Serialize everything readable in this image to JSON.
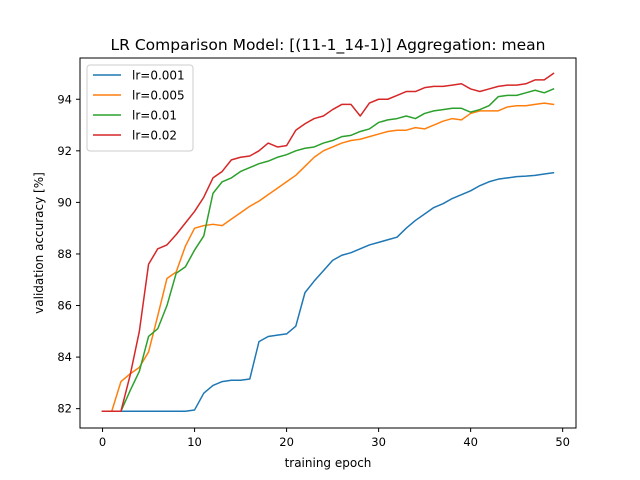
{
  "chart_data": {
    "type": "line",
    "title": "LR Comparison  Model: [(11-1_14-1)]  Aggregation: mean",
    "xlabel": "training epoch",
    "ylabel": "validation accuracy [%]",
    "xlim": [
      -2.45,
      51.45
    ],
    "ylim": [
      81.25,
      95.6
    ],
    "xticks": [
      0,
      10,
      20,
      30,
      40,
      50
    ],
    "yticks": [
      82,
      84,
      86,
      88,
      90,
      92,
      94
    ],
    "grid": false,
    "legend_position": "top-left",
    "series": [
      {
        "name": "lr=0.001",
        "color": "#1f77b4",
        "x": [
          0,
          1,
          2,
          3,
          4,
          5,
          6,
          7,
          8,
          9,
          10,
          11,
          12,
          13,
          14,
          15,
          16,
          17,
          18,
          19,
          20,
          21,
          22,
          23,
          24,
          25,
          26,
          27,
          28,
          29,
          30,
          31,
          32,
          33,
          34,
          35,
          36,
          37,
          38,
          39,
          40,
          41,
          42,
          43,
          44,
          45,
          46,
          47,
          48,
          49
        ],
        "values": [
          81.9,
          81.9,
          81.9,
          81.9,
          81.9,
          81.9,
          81.9,
          81.9,
          81.9,
          81.9,
          81.95,
          82.6,
          82.9,
          83.05,
          83.1,
          83.1,
          83.15,
          84.6,
          84.8,
          84.85,
          84.9,
          85.2,
          86.5,
          86.95,
          87.35,
          87.75,
          87.95,
          88.05,
          88.2,
          88.35,
          88.45,
          88.55,
          88.65,
          89.0,
          89.3,
          89.55,
          89.8,
          89.95,
          90.15,
          90.3,
          90.45,
          90.65,
          90.8,
          90.9,
          90.95,
          91.0,
          91.02,
          91.05,
          91.1,
          91.15
        ]
      },
      {
        "name": "lr=0.005",
        "color": "#ff7f0e",
        "x": [
          0,
          1,
          2,
          3,
          4,
          5,
          6,
          7,
          8,
          9,
          10,
          11,
          12,
          13,
          14,
          15,
          16,
          17,
          18,
          19,
          20,
          21,
          22,
          23,
          24,
          25,
          26,
          27,
          28,
          29,
          30,
          31,
          32,
          33,
          34,
          35,
          36,
          37,
          38,
          39,
          40,
          41,
          42,
          43,
          44,
          45,
          46,
          47,
          48,
          49
        ],
        "values": [
          81.9,
          81.9,
          83.05,
          83.35,
          83.6,
          84.2,
          85.6,
          87.05,
          87.3,
          88.3,
          89.0,
          89.1,
          89.15,
          89.1,
          89.35,
          89.6,
          89.85,
          90.05,
          90.3,
          90.55,
          90.8,
          91.05,
          91.4,
          91.75,
          92.0,
          92.15,
          92.3,
          92.4,
          92.45,
          92.55,
          92.65,
          92.75,
          92.8,
          92.8,
          92.9,
          92.85,
          93.0,
          93.15,
          93.25,
          93.2,
          93.45,
          93.55,
          93.55,
          93.55,
          93.7,
          93.75,
          93.75,
          93.8,
          93.85,
          93.8
        ]
      },
      {
        "name": "lr=0.01",
        "color": "#2ca02c",
        "x": [
          0,
          1,
          2,
          3,
          4,
          5,
          6,
          7,
          8,
          9,
          10,
          11,
          12,
          13,
          14,
          15,
          16,
          17,
          18,
          19,
          20,
          21,
          22,
          23,
          24,
          25,
          26,
          27,
          28,
          29,
          30,
          31,
          32,
          33,
          34,
          35,
          36,
          37,
          38,
          39,
          40,
          41,
          42,
          43,
          44,
          45,
          46,
          47,
          48,
          49
        ],
        "values": [
          81.9,
          81.9,
          81.9,
          82.7,
          83.45,
          84.8,
          85.1,
          86.0,
          87.25,
          87.5,
          88.15,
          88.7,
          90.35,
          90.8,
          90.95,
          91.2,
          91.35,
          91.5,
          91.6,
          91.75,
          91.85,
          92.0,
          92.1,
          92.15,
          92.3,
          92.4,
          92.55,
          92.6,
          92.75,
          92.85,
          93.1,
          93.2,
          93.25,
          93.35,
          93.25,
          93.45,
          93.55,
          93.6,
          93.65,
          93.65,
          93.5,
          93.6,
          93.75,
          94.1,
          94.15,
          94.15,
          94.25,
          94.35,
          94.25,
          94.4
        ]
      },
      {
        "name": "lr=0.02",
        "color": "#d62728",
        "x": [
          0,
          1,
          2,
          3,
          4,
          5,
          6,
          7,
          8,
          9,
          10,
          11,
          12,
          13,
          14,
          15,
          16,
          17,
          18,
          19,
          20,
          21,
          22,
          23,
          24,
          25,
          26,
          27,
          28,
          29,
          30,
          31,
          32,
          33,
          34,
          35,
          36,
          37,
          38,
          39,
          40,
          41,
          42,
          43,
          44,
          45,
          46,
          47,
          48,
          49
        ],
        "values": [
          81.9,
          81.9,
          81.9,
          83.3,
          85.0,
          87.6,
          88.2,
          88.35,
          88.75,
          89.2,
          89.65,
          90.2,
          90.95,
          91.2,
          91.65,
          91.75,
          91.8,
          92.0,
          92.3,
          92.15,
          92.2,
          92.8,
          93.05,
          93.25,
          93.35,
          93.6,
          93.8,
          93.8,
          93.35,
          93.85,
          94.0,
          94.0,
          94.15,
          94.3,
          94.3,
          94.45,
          94.5,
          94.5,
          94.55,
          94.6,
          94.4,
          94.3,
          94.4,
          94.5,
          94.55,
          94.55,
          94.6,
          94.75,
          94.75,
          95.0
        ]
      }
    ]
  }
}
